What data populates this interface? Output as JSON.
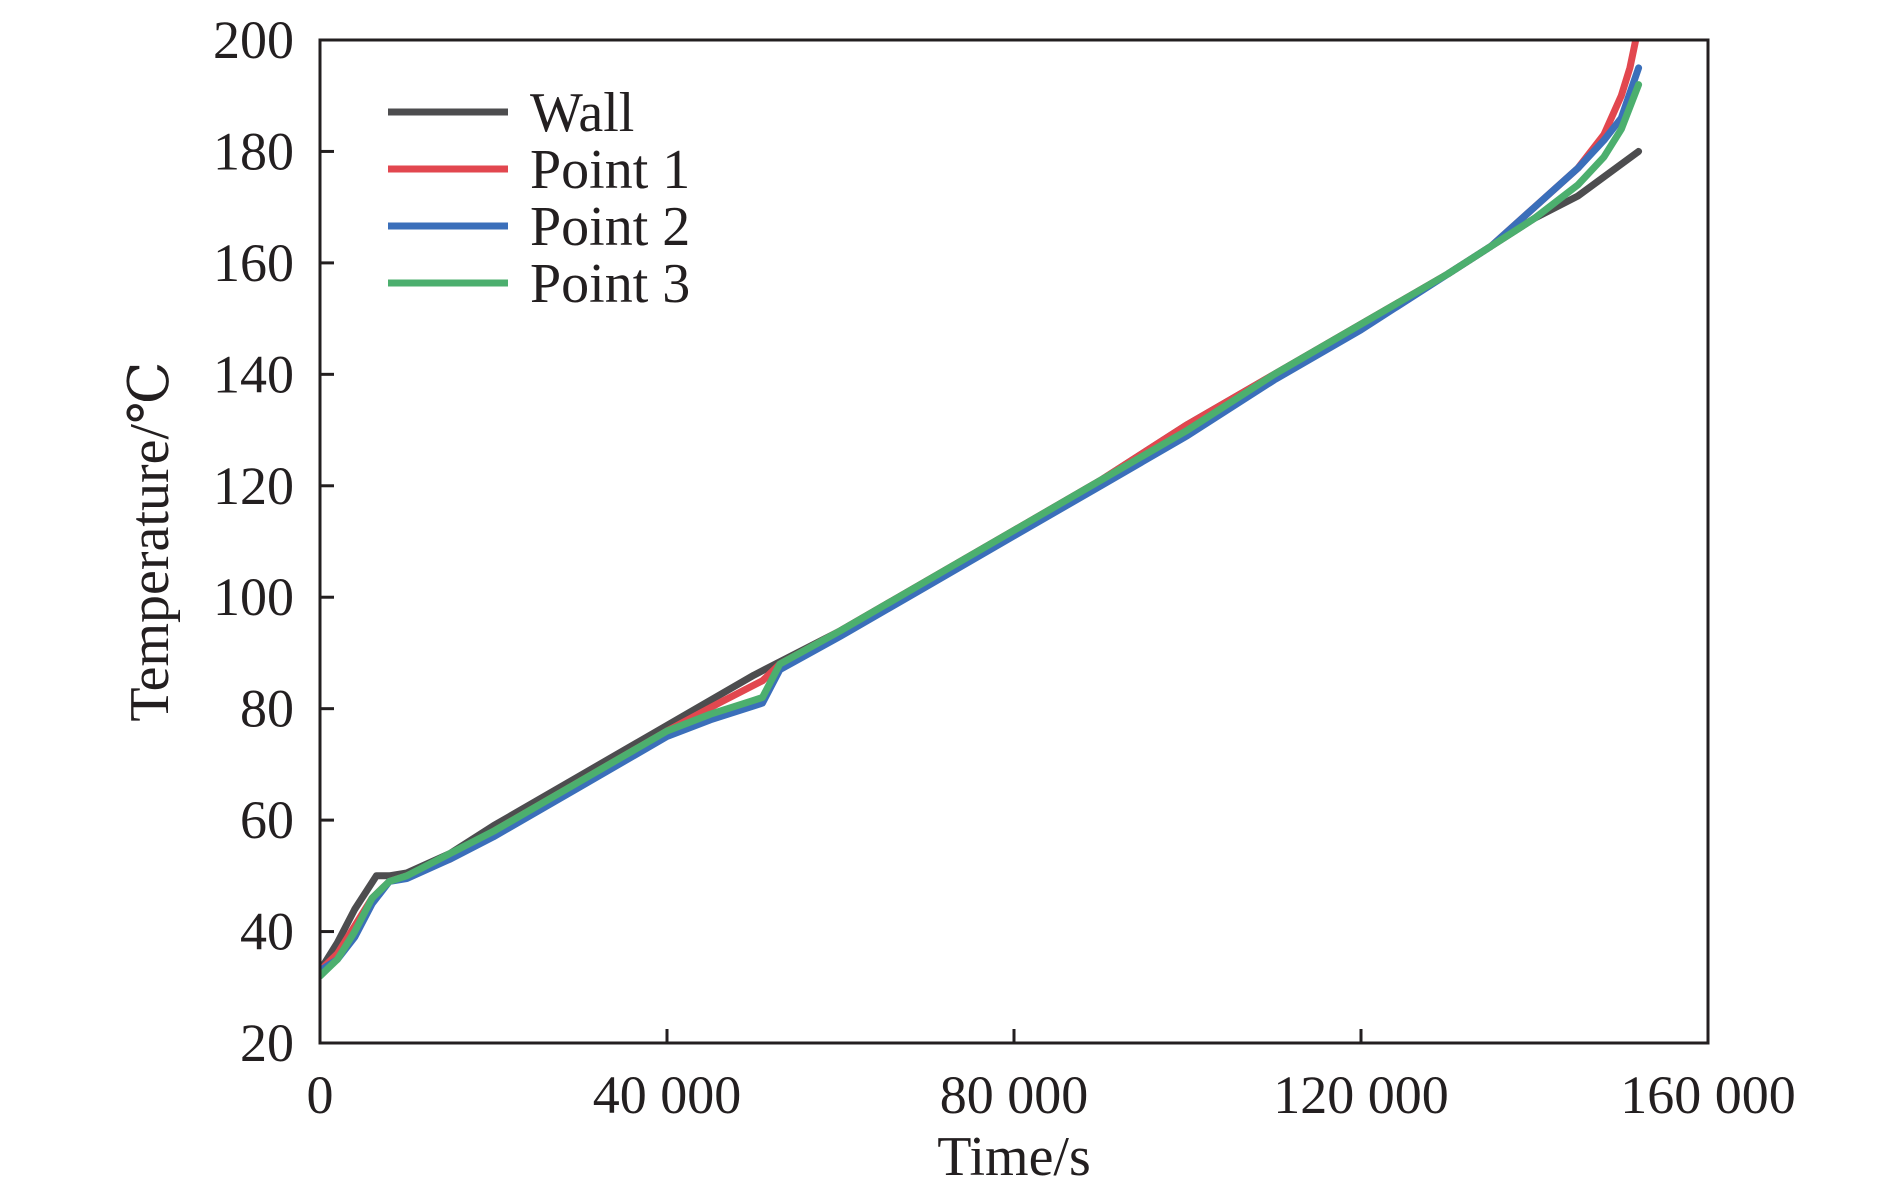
{
  "chart_data": {
    "type": "line",
    "title": "",
    "xlabel": "Time/s",
    "ylabel": "Temperature/℃",
    "xlim": [
      0,
      160000
    ],
    "ylim": [
      20,
      200
    ],
    "xticks": [
      {
        "value": 0,
        "label": "0"
      },
      {
        "value": 40000,
        "label": "40 000"
      },
      {
        "value": 80000,
        "label": "80 000"
      },
      {
        "value": 120000,
        "label": "120 000"
      },
      {
        "value": 160000,
        "label": "160 000"
      }
    ],
    "yticks": [
      {
        "value": 20,
        "label": "20"
      },
      {
        "value": 40,
        "label": "40"
      },
      {
        "value": 60,
        "label": "60"
      },
      {
        "value": 80,
        "label": "80"
      },
      {
        "value": 100,
        "label": "100"
      },
      {
        "value": 120,
        "label": "120"
      },
      {
        "value": 140,
        "label": "140"
      },
      {
        "value": 160,
        "label": "160"
      },
      {
        "value": 180,
        "label": "180"
      },
      {
        "value": 200,
        "label": "200"
      }
    ],
    "grid": false,
    "legend_position": "top-left",
    "series": [
      {
        "name": "Wall",
        "color": "#4d4d4f",
        "x": [
          0,
          2000,
          4000,
          6500,
          8000,
          10000,
          15000,
          20000,
          30000,
          40000,
          50000,
          60000,
          70000,
          80000,
          90000,
          100000,
          110000,
          120000,
          130000,
          135000,
          140000,
          145000,
          152000
        ],
        "y": [
          33,
          38,
          44,
          50,
          50,
          50.5,
          54,
          59,
          68,
          77,
          86,
          94,
          103,
          112,
          121,
          131,
          140,
          149,
          158,
          163,
          168,
          172,
          180
        ]
      },
      {
        "name": "Point 1",
        "color": "#e2474f",
        "x": [
          0,
          2000,
          4000,
          6000,
          8000,
          10000,
          15000,
          20000,
          30000,
          40000,
          46000,
          51000,
          53000,
          60000,
          70000,
          80000,
          90000,
          100000,
          110000,
          120000,
          130000,
          135000,
          140000,
          145000,
          148000,
          150000,
          151000,
          151800
        ],
        "y": [
          33,
          36,
          41,
          46,
          49,
          50,
          53,
          58,
          67,
          76,
          81,
          85,
          88,
          94,
          103,
          112,
          121,
          131,
          140,
          149,
          158,
          163,
          170,
          177,
          183,
          190,
          195,
          201
        ]
      },
      {
        "name": "Point 2",
        "color": "#3b6fba",
        "x": [
          0,
          2000,
          4000,
          6000,
          8000,
          10000,
          15000,
          20000,
          30000,
          40000,
          45000,
          50000,
          51000,
          53000,
          60000,
          70000,
          80000,
          90000,
          100000,
          110000,
          120000,
          130000,
          135000,
          140000,
          145000,
          148000,
          150000,
          152000
        ],
        "y": [
          33,
          35,
          39,
          45,
          49,
          49.5,
          53,
          57,
          66,
          75,
          78,
          80.5,
          81,
          87,
          93,
          102,
          111,
          120,
          129,
          139,
          148,
          158,
          163,
          170,
          177,
          182,
          186,
          195
        ]
      },
      {
        "name": "Point 3",
        "color": "#4caf6e",
        "x": [
          0,
          2000,
          4000,
          6000,
          8000,
          10000,
          15000,
          20000,
          30000,
          40000,
          45000,
          50000,
          51000,
          53000,
          60000,
          70000,
          80000,
          90000,
          100000,
          110000,
          120000,
          130000,
          135000,
          140000,
          145000,
          148000,
          150000,
          152000
        ],
        "y": [
          32,
          35,
          40,
          46,
          49,
          50,
          54,
          58,
          67,
          76,
          79,
          81.5,
          82,
          88,
          94,
          103,
          112,
          121,
          130,
          140,
          149,
          158,
          163,
          168,
          174,
          179,
          184,
          192
        ]
      }
    ]
  }
}
